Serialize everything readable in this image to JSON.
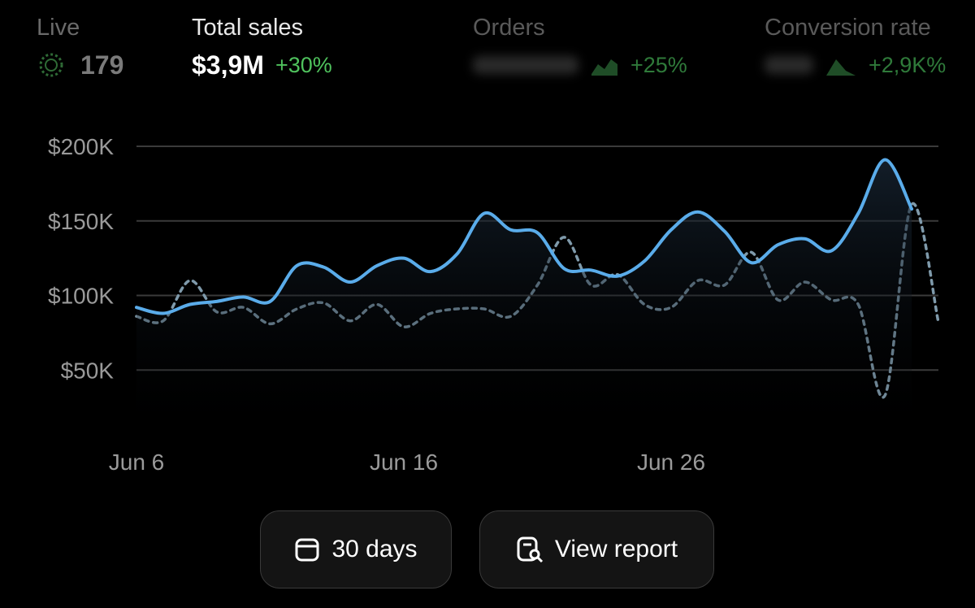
{
  "stats": [
    {
      "label": "Live",
      "value": "179"
    },
    {
      "label": "Total sales",
      "value": "$3,9M",
      "change": "+30%"
    },
    {
      "label": "Orders",
      "change": "+25%"
    },
    {
      "label": "Conversion rate",
      "change": "+2,9K%"
    }
  ],
  "chart_data": {
    "type": "line",
    "categories": [
      "Jun 6",
      null,
      null,
      null,
      null,
      null,
      null,
      null,
      null,
      null,
      "Jun 16",
      null,
      null,
      null,
      null,
      null,
      null,
      null,
      null,
      null,
      "Jun 26",
      null,
      null,
      null,
      null,
      null,
      null,
      null,
      null,
      null,
      null
    ],
    "series": [
      {
        "color": "#5aacea",
        "style": "solid",
        "values": [
          92000,
          88000,
          94000,
          96000,
          99000,
          96000,
          120000,
          119000,
          109000,
          120000,
          125000,
          116000,
          128000,
          155000,
          144000,
          142000,
          118000,
          117000,
          113000,
          123000,
          144000,
          156000,
          143000,
          122000,
          134000,
          138000,
          130000,
          155000,
          191000,
          158000,
          null
        ]
      },
      {
        "color": "#7f9aab",
        "style": "dotted",
        "values": [
          86000,
          83000,
          110000,
          89000,
          92000,
          81000,
          91000,
          95000,
          83000,
          94000,
          79000,
          88000,
          91000,
          91000,
          86000,
          107000,
          139000,
          107000,
          114000,
          94000,
          92000,
          110000,
          107000,
          129000,
          97000,
          109000,
          97000,
          94000,
          33000,
          161000,
          82000
        ]
      }
    ],
    "ylim": [
      0,
      200000
    ],
    "yticks": [
      {
        "value": 50000,
        "label": "$50K"
      },
      {
        "value": 100000,
        "label": "$100K"
      },
      {
        "value": 150000,
        "label": "$150K"
      },
      {
        "value": 200000,
        "label": "$200K"
      }
    ],
    "grid": true
  },
  "buttons": [
    "30 days",
    "View report"
  ]
}
